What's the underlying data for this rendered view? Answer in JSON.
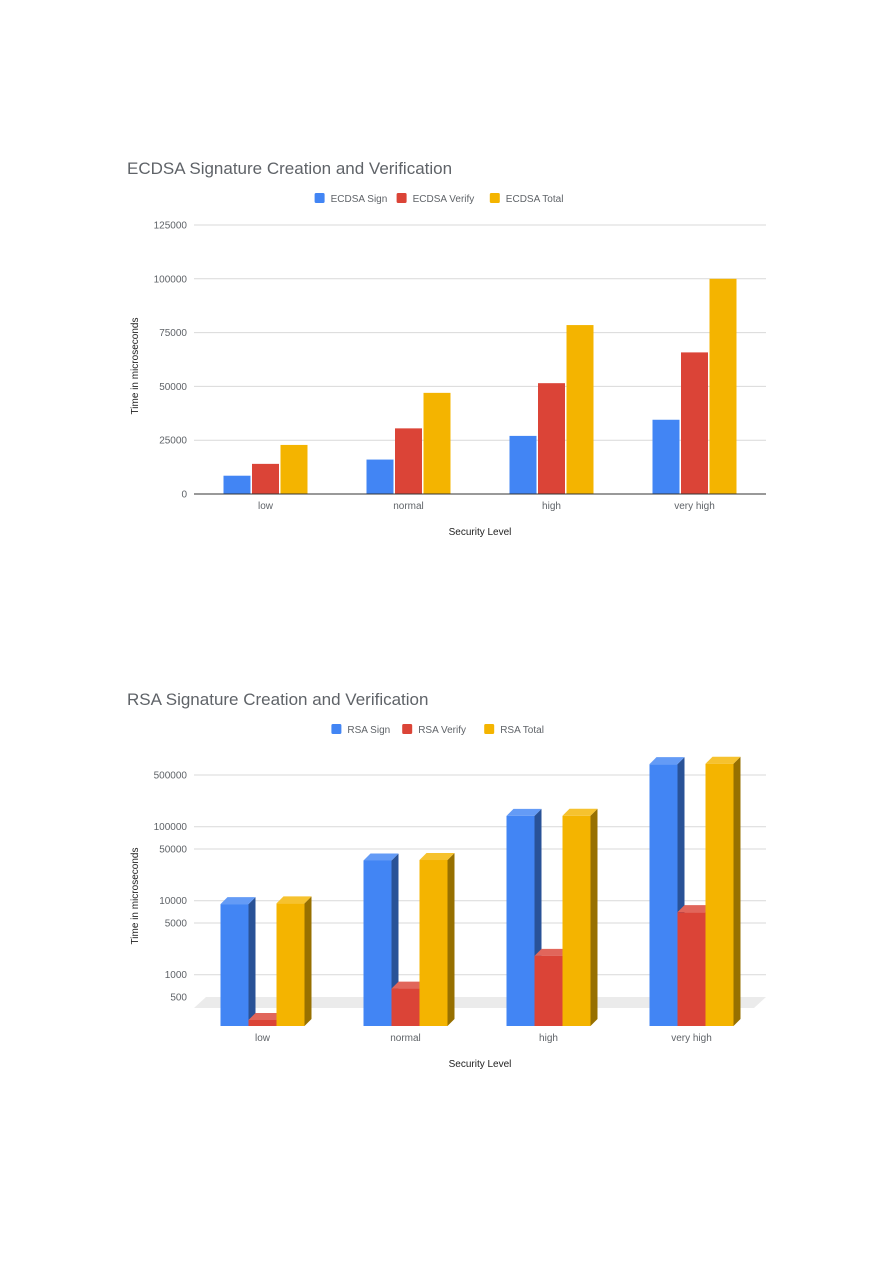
{
  "chart_data": [
    {
      "type": "bar",
      "title": "ECDSA Signature Creation and Verification",
      "xlabel": "Security Level",
      "ylabel": "Time in microseconds",
      "categories": [
        "low",
        "normal",
        "high",
        "very high"
      ],
      "ylim": [
        0,
        125000
      ],
      "yticks": [
        "0",
        "25000",
        "50000",
        "75000",
        "100000",
        "125000"
      ],
      "ytick_values": [
        0,
        25000,
        50000,
        75000,
        100000,
        125000
      ],
      "grid": true,
      "legend_position": "top",
      "series": [
        {
          "name": "ECDSA Sign",
          "color": "#4285f4",
          "values": [
            8500,
            16000,
            27000,
            34500
          ]
        },
        {
          "name": "ECDSA Verify",
          "color": "#db4437",
          "values": [
            14000,
            30500,
            51500,
            65800
          ]
        },
        {
          "name": "ECDSA Total",
          "color": "#f4b400",
          "values": [
            22800,
            47000,
            78500,
            100000
          ]
        }
      ]
    },
    {
      "type": "bar",
      "title": "RSA Signature Creation and Verification",
      "xlabel": "Security Level",
      "ylabel": "Time in microseconds",
      "categories": [
        "low",
        "normal",
        "high",
        "very high"
      ],
      "scale": "log",
      "ytick_values": [
        500,
        1000,
        5000,
        10000,
        50000,
        100000,
        500000
      ],
      "yticks": [
        "500",
        "1000",
        "5000",
        "10000",
        "50000",
        "100000",
        "500000"
      ],
      "grid": true,
      "legend_position": "top",
      "three_d": true,
      "series": [
        {
          "name": "RSA Sign",
          "color": "#4285f4",
          "values": [
            9000,
            35000,
            140000,
            700000
          ]
        },
        {
          "name": "RSA Verify",
          "color": "#db4437",
          "values": [
            270,
            650,
            1800,
            7000
          ]
        },
        {
          "name": "RSA Total",
          "color": "#f4b400",
          "values": [
            9200,
            35500,
            140500,
            710000
          ]
        }
      ]
    }
  ]
}
